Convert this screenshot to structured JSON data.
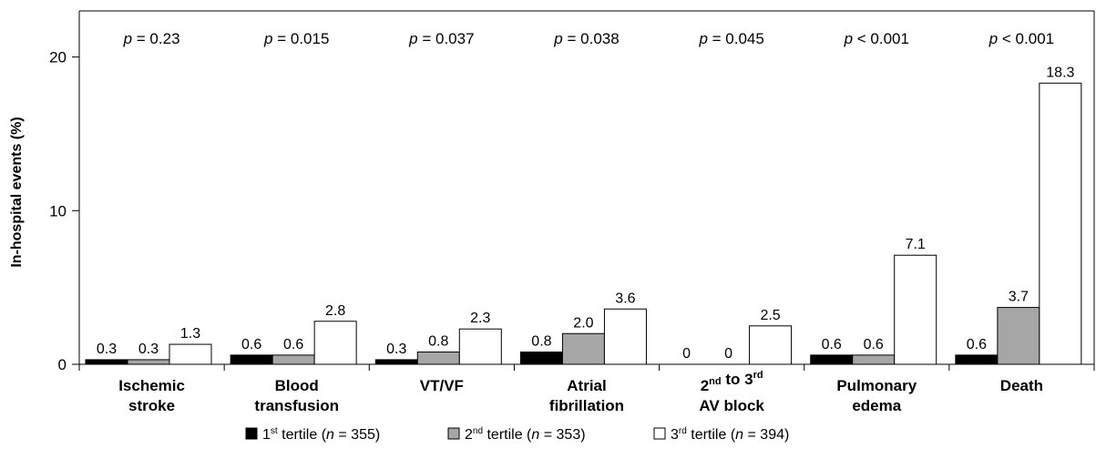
{
  "chart_data": {
    "type": "bar",
    "categories": [
      [
        "Ischemic",
        "stroke"
      ],
      [
        "Blood",
        "transfusion"
      ],
      [
        "VT/VF"
      ],
      [
        "Atrial",
        "fibrillation"
      ],
      [
        "2nd to 3rd",
        "AV block"
      ],
      [
        "Pulmonary",
        "edema"
      ],
      [
        "Death"
      ]
    ],
    "category_sup": [
      null,
      null,
      null,
      null,
      {
        "line": 0,
        "parts": [
          [
            "2",
            "nd"
          ],
          [
            " to 3",
            "rd"
          ]
        ]
      },
      null,
      null
    ],
    "series": [
      {
        "name_base": "1",
        "name_sup": "st",
        "name_rest": " tertile (",
        "n_label": "n",
        "n_value": " = 355)",
        "color": "#000000",
        "values": [
          0.3,
          0.6,
          0.3,
          0.8,
          0,
          0.6,
          0.6
        ]
      },
      {
        "name_base": "2",
        "name_sup": "nd",
        "name_rest": " tertile (",
        "n_label": "n",
        "n_value": " = 353)",
        "color": "#a6a6a6",
        "values": [
          0.3,
          0.6,
          0.8,
          2.0,
          0,
          0.6,
          3.7
        ]
      },
      {
        "name_base": "3",
        "name_sup": "rd",
        "name_rest": " tertile (",
        "n_label": "n",
        "n_value": " = 394)",
        "color": "#ffffff",
        "values": [
          1.3,
          2.8,
          2.3,
          3.6,
          2.5,
          7.1,
          18.3
        ]
      }
    ],
    "value_labels": [
      [
        "0.3",
        "0.3",
        "1.3"
      ],
      [
        "0.6",
        "0.6",
        "2.8"
      ],
      [
        "0.3",
        "0.8",
        "2.3"
      ],
      [
        "0.8",
        "2.0",
        "3.6"
      ],
      [
        "0",
        "0",
        "2.5"
      ],
      [
        "0.6",
        "0.6",
        "7.1"
      ],
      [
        "0.6",
        "3.7",
        "18.3"
      ]
    ],
    "p_values": [
      {
        "label": "p",
        "rest": " = 0.23"
      },
      {
        "label": "p",
        "rest": " = 0.015"
      },
      {
        "label": "p",
        "rest": " = 0.037"
      },
      {
        "label": "p",
        "rest": " = 0.038"
      },
      {
        "label": "p",
        "rest": " = 0.045"
      },
      {
        "label": "p",
        "rest": " < 0.001"
      },
      {
        "label": "p",
        "rest": " < 0.001"
      }
    ],
    "ylabel": "In-hospital events (%)",
    "ylim": [
      0,
      23
    ],
    "yticks": [
      0,
      10,
      20
    ],
    "legend_position": "bottom",
    "grid": false
  }
}
